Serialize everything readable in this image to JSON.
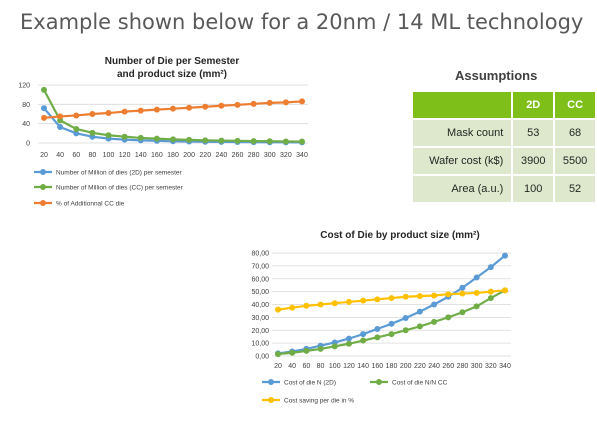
{
  "slide_title": "Example shown below for a 20nm / 14 ML technology",
  "assumptions": {
    "title": "Assumptions",
    "columns": [
      "2D",
      "CC"
    ],
    "rows": [
      {
        "label": "Mask count",
        "v2d": "53",
        "vcc": "68"
      },
      {
        "label": "Wafer cost (k$)",
        "v2d": "3900",
        "vcc": "5500"
      },
      {
        "label": "Area (a.u.)",
        "v2d": "100",
        "vcc": "52"
      }
    ]
  },
  "colors": {
    "blue": "#5b9bd5",
    "green": "#70ad47",
    "orange": "#ed7d31",
    "yellow": "#ffc000",
    "grid": "#d9d9d9"
  },
  "chart_data": [
    {
      "type": "line",
      "title": "Number of Die per Semester",
      "subtitle": "and product size (mm²)",
      "x": [
        20,
        40,
        60,
        80,
        100,
        120,
        140,
        160,
        180,
        200,
        220,
        240,
        260,
        280,
        300,
        320,
        340
      ],
      "yticks": [
        "0",
        "40",
        "80",
        "120"
      ],
      "ylim": [
        0,
        120
      ],
      "grid": true,
      "legend": "bottom",
      "series": [
        {
          "name": "Number of Million of dies (2D) per semester",
          "color": "#5b9bd5",
          "values": [
            72,
            33,
            20,
            13,
            9,
            7,
            5.5,
            4.5,
            3.5,
            3,
            2.5,
            2.2,
            2,
            1.8,
            1.6,
            1.4,
            1.2
          ]
        },
        {
          "name": "Number of Million of dies (CC) per semester",
          "color": "#70ad47",
          "values": [
            110,
            47,
            29,
            21,
            16,
            13,
            10.5,
            9,
            7.5,
            6.5,
            5.5,
            5,
            4.5,
            4,
            3.6,
            3.2,
            3
          ]
        },
        {
          "name": "% of Additionnal CC die",
          "color": "#ed7d31",
          "values": [
            52,
            55,
            57,
            60,
            62,
            65,
            67,
            69,
            71,
            73,
            75,
            77,
            79,
            81,
            83,
            84,
            86
          ]
        }
      ]
    },
    {
      "type": "line",
      "title": "Cost of Die by product size (mm²)",
      "x": [
        20,
        40,
        60,
        80,
        100,
        120,
        140,
        160,
        180,
        200,
        220,
        240,
        260,
        280,
        300,
        320,
        340
      ],
      "yticks": [
        "0,00",
        "10,00",
        "20,00",
        "30,00",
        "40,00",
        "50,00",
        "60,00",
        "70,00",
        "80,00"
      ],
      "ylim": [
        0,
        80
      ],
      "grid": true,
      "legend": "bottom",
      "series": [
        {
          "name": "Cost of die N (2D)",
          "color": "#5b9bd5",
          "values": [
            2,
            3.5,
            5.5,
            8,
            10.5,
            13.5,
            17,
            21,
            25,
            29.5,
            34.5,
            40,
            46,
            53,
            61,
            69,
            78
          ]
        },
        {
          "name": "Cost of die N/N CC",
          "color": "#70ad47",
          "values": [
            1.5,
            2.5,
            4,
            5.5,
            7.5,
            9.5,
            12,
            14.5,
            17,
            20,
            23,
            26.5,
            30,
            34,
            38.5,
            45,
            51
          ]
        },
        {
          "name": "Cost saving per die in %",
          "color": "#ffc000",
          "values": [
            36,
            37.5,
            39,
            40,
            41,
            42,
            43,
            44,
            45,
            46,
            46.5,
            47,
            48,
            48.5,
            49,
            50,
            51
          ]
        }
      ]
    }
  ]
}
